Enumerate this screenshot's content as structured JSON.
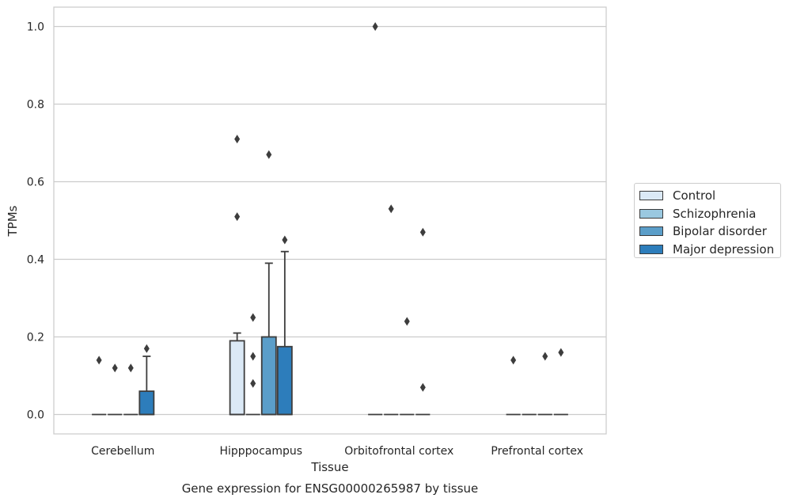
{
  "chart_data": {
    "type": "box",
    "title": "",
    "caption": "Gene expression for ENSG00000265987 by tissue",
    "xlabel": "Tissue",
    "ylabel": "TPMs",
    "ylim": [
      -0.05,
      1.05
    ],
    "yticks": [
      0.0,
      0.2,
      0.4,
      0.6,
      0.8,
      1.0
    ],
    "ytick_labels": [
      "0.0",
      "0.2",
      "0.4",
      "0.6",
      "0.8",
      "1.0"
    ],
    "grid": "horizontal",
    "legend_position": "right",
    "categories": [
      "Cerebellum",
      "Hipppocampus",
      "Orbitofrontal cortex",
      "Prefrontal cortex"
    ],
    "series": [
      {
        "name": "Control",
        "color": "#dbe9f6",
        "boxes": [
          {
            "q1": 0,
            "median": 0,
            "q3": 0,
            "whisker_low": 0,
            "whisker_high": 0,
            "outliers": [
              0.14
            ]
          },
          {
            "q1": 0,
            "median": 0,
            "q3": 0.19,
            "whisker_low": 0,
            "whisker_high": 0.21,
            "outliers": [
              0.51,
              0.71
            ]
          },
          {
            "q1": 0,
            "median": 0,
            "q3": 0,
            "whisker_low": 0,
            "whisker_high": 0,
            "outliers": [
              1.0
            ]
          },
          {
            "q1": 0,
            "median": 0,
            "q3": 0,
            "whisker_low": 0,
            "whisker_high": 0,
            "outliers": [
              0.14
            ]
          }
        ]
      },
      {
        "name": "Schizophrenia",
        "color": "#9ac8e0",
        "boxes": [
          {
            "q1": 0,
            "median": 0,
            "q3": 0,
            "whisker_low": 0,
            "whisker_high": 0,
            "outliers": [
              0.12
            ]
          },
          {
            "q1": 0,
            "median": 0,
            "q3": 0,
            "whisker_low": 0,
            "whisker_high": 0,
            "outliers": [
              0.08,
              0.15,
              0.25
            ]
          },
          {
            "q1": 0,
            "median": 0,
            "q3": 0,
            "whisker_low": 0,
            "whisker_high": 0,
            "outliers": [
              0.53
            ]
          },
          {
            "q1": 0,
            "median": 0,
            "q3": 0,
            "whisker_low": 0,
            "whisker_high": 0,
            "outliers": []
          }
        ]
      },
      {
        "name": "Bipolar disorder",
        "color": "#5b9ec9",
        "boxes": [
          {
            "q1": 0,
            "median": 0,
            "q3": 0,
            "whisker_low": 0,
            "whisker_high": 0,
            "outliers": [
              0.12
            ]
          },
          {
            "q1": 0,
            "median": 0,
            "q3": 0.2,
            "whisker_low": 0,
            "whisker_high": 0.39,
            "outliers": [
              0.67
            ]
          },
          {
            "q1": 0,
            "median": 0,
            "q3": 0,
            "whisker_low": 0,
            "whisker_high": 0,
            "outliers": [
              0.24
            ]
          },
          {
            "q1": 0,
            "median": 0,
            "q3": 0,
            "whisker_low": 0,
            "whisker_high": 0,
            "outliers": [
              0.15
            ]
          }
        ]
      },
      {
        "name": "Major depression",
        "color": "#2d7dbb",
        "boxes": [
          {
            "q1": 0,
            "median": 0,
            "q3": 0.06,
            "whisker_low": 0,
            "whisker_high": 0.15,
            "outliers": [
              0.17
            ]
          },
          {
            "q1": 0,
            "median": 0,
            "q3": 0.175,
            "whisker_low": 0,
            "whisker_high": 0.42,
            "outliers": [
              0.45
            ]
          },
          {
            "q1": 0,
            "median": 0,
            "q3": 0,
            "whisker_low": 0,
            "whisker_high": 0,
            "outliers": [
              0.07,
              0.47
            ]
          },
          {
            "q1": 0,
            "median": 0,
            "q3": 0,
            "whisker_low": 0,
            "whisker_high": 0,
            "outliers": [
              0.16
            ]
          }
        ]
      }
    ]
  }
}
